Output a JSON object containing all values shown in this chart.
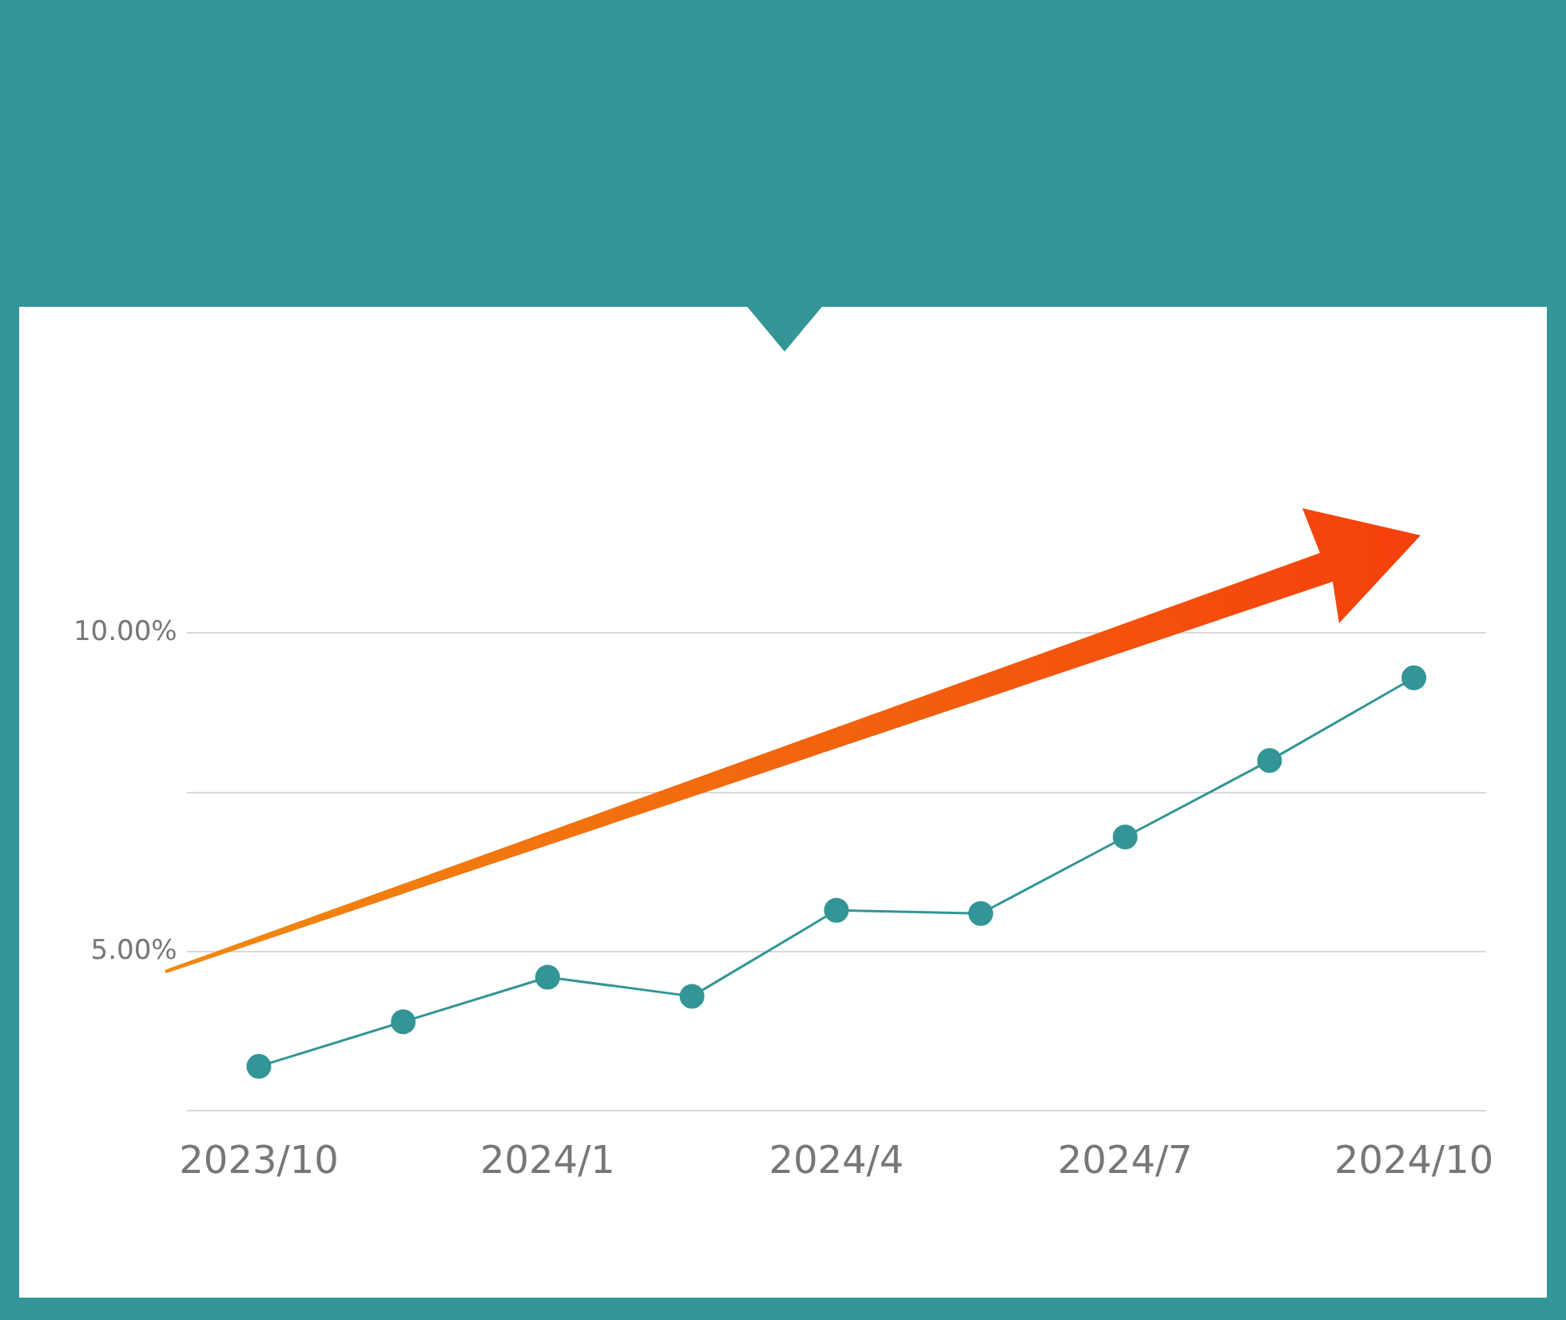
{
  "chart_data": {
    "type": "line",
    "categories": [
      "2023/10",
      null,
      "2024/1",
      null,
      "2024/4",
      null,
      "2024/7",
      null,
      "2024/10"
    ],
    "series": [
      {
        "color": "#339595",
        "values": [
          3.2,
          3.9,
          4.6,
          4.3,
          5.65,
          5.6,
          6.8,
          8.0,
          9.3
        ]
      }
    ],
    "ylim": [
      2.5,
      10
    ],
    "yticks": [
      {
        "value": 2.5,
        "label": null
      },
      {
        "value": 5,
        "label": "5.00%"
      },
      {
        "value": 7.5,
        "label": null
      },
      {
        "value": 10,
        "label": "10.00%"
      }
    ],
    "grid": "y",
    "marker": "circle",
    "legend": false
  }
}
